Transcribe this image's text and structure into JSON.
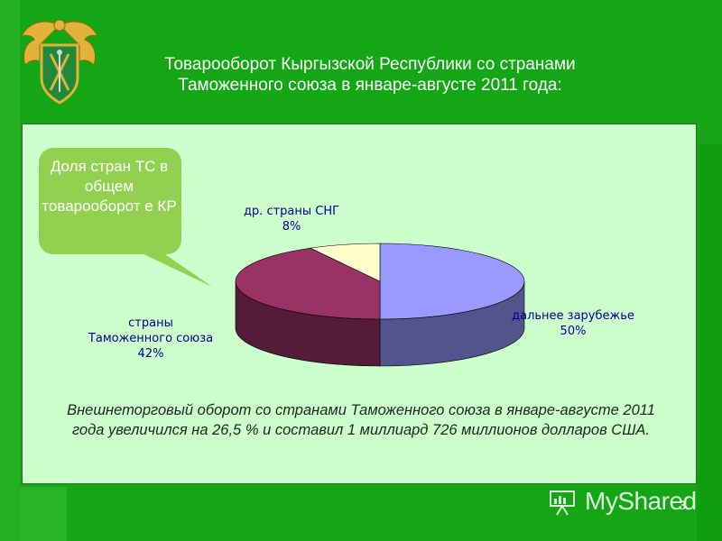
{
  "slide": {
    "title_line1": "Товарооборот Кыргызской Республики со странами",
    "title_line2": "Таможенного союза в январе-августе 2011 года:",
    "number": "3"
  },
  "callout": {
    "text": "Доля стран ТС в общем товарооборот е КР"
  },
  "summary": "Внешнеторговый оборот со странами Таможенного союза в январе-августе 2011 года увеличился на 26,5 % и составил 1 миллиард 726 миллионов долларов США.",
  "watermark": {
    "text": "MyShared"
  },
  "colors": {
    "background": "#14a614",
    "panel": "#ccffcc",
    "far_abroad": "#9999ff",
    "customs_union": "#993366",
    "other_cis": "#ffffcc",
    "label_text": "#00008b"
  },
  "chart_data": {
    "type": "pie",
    "title": "",
    "slices": [
      {
        "label_line1": "дальнее зарубежье",
        "label_line2": "",
        "value": 50,
        "display": "50%",
        "color": "#9999ff"
      },
      {
        "label_line1": "страны",
        "label_line2": "Таможенного союза",
        "value": 42,
        "display": "42%",
        "color": "#993366"
      },
      {
        "label_line1": "др. страны СНГ",
        "label_line2": "",
        "value": 8,
        "display": "8%",
        "color": "#ffffcc"
      }
    ]
  }
}
